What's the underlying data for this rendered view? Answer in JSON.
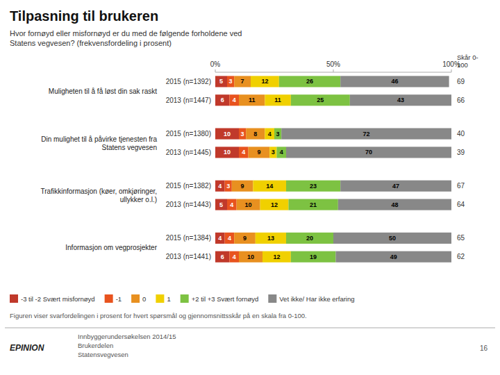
{
  "chart_data": {
    "type": "bar",
    "orientation": "horizontal",
    "stacked": true,
    "data_labels": true,
    "grid": false,
    "legend": "bottom",
    "title": "Tilpasning til brukeren",
    "subtitle": "Hvor fornøyd eller misfornøyd er du med de følgende forholdene ved\nStatens vegvesen? (frekvensfordeling i prosent)",
    "groups": [
      {
        "label": "Muligheten til å få løst din sak raskt"
      },
      {
        "label": "Din mulighet til å påvirke tjenesten fra\nStatens vegvesen"
      },
      {
        "label": "Trafikkinformasjon (køer, omkjøringer,\nullykker o.l.)"
      },
      {
        "label": "Informasjon om vegprosjekter"
      }
    ],
    "categories": [
      "2015 (n=1392)",
      "2013 (n=1447)",
      "2015 (n=1380)",
      "2013 (n=1445)",
      "2015 (n=1382)",
      "2013 (n=1443)",
      "2015 (n=1384)",
      "2013 (n=1441)"
    ],
    "series": [
      {
        "name": "-3 til -2 Svært misfornøyd",
        "color": "#c0392b",
        "values": [
          5,
          6,
          10,
          10,
          4,
          5,
          4,
          6
        ]
      },
      {
        "name": "-1",
        "color": "#e8531e",
        "values": [
          3,
          4,
          3,
          4,
          3,
          4,
          4,
          4
        ]
      },
      {
        "name": "0",
        "color": "#e89020",
        "values": [
          7,
          11,
          8,
          9,
          9,
          10,
          9,
          10
        ]
      },
      {
        "name": "1",
        "color": "#f0d000",
        "values": [
          12,
          11,
          4,
          3,
          14,
          12,
          13,
          12
        ]
      },
      {
        "name": "+2 til +3 Svært fornøyd",
        "color": "#7dc242",
        "values": [
          26,
          25,
          3,
          4,
          23,
          21,
          20,
          19
        ]
      },
      {
        "name": "Vet ikke/ Har ikke erfaring",
        "color": "#888888",
        "values": [
          46,
          43,
          72,
          70,
          47,
          48,
          50,
          49
        ]
      }
    ],
    "score_header": "Skår 0-\n100",
    "scores": [
      69,
      66,
      40,
      39,
      67,
      64,
      65,
      62
    ],
    "xlim": [
      0,
      100
    ],
    "xticks": [
      {
        "value": 0,
        "label": "0%"
      },
      {
        "value": 50,
        "label": "50%"
      },
      {
        "value": 100,
        "label": "100%"
      }
    ],
    "footnote": "Figuren viser svarfordelingen i prosent for hvert spørsmål og gjennomsnittsskår på en skala fra 0-100.",
    "footer": [
      "Innbyggerundersøkelsen 2014/15",
      "Brukerdelen",
      "Statensvegvesen"
    ],
    "logo": "EPINION",
    "page_number": 16
  }
}
